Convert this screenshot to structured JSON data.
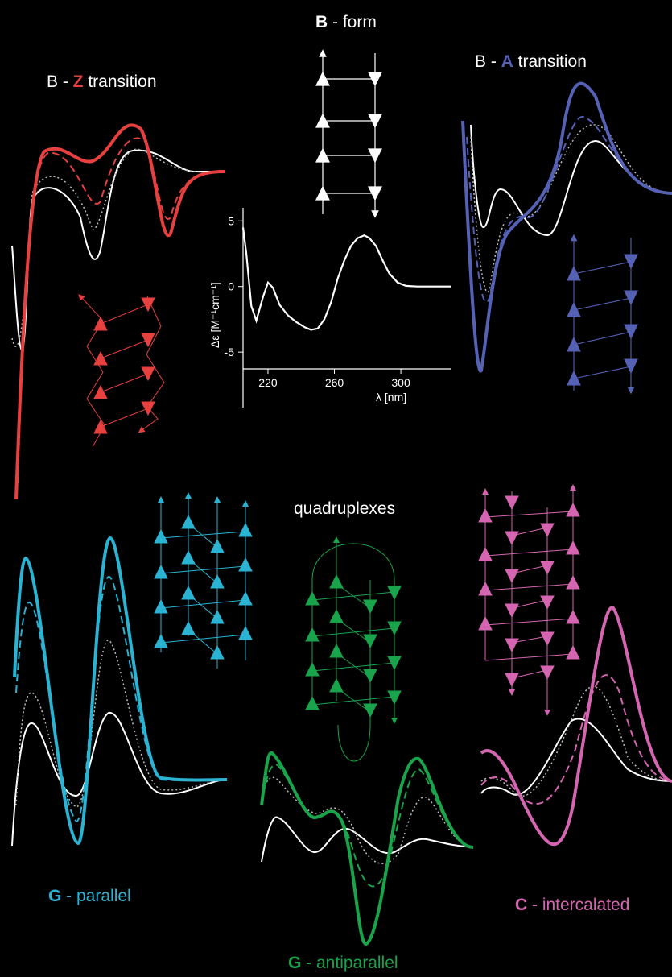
{
  "labels": {
    "b_form": {
      "prefix": "B",
      "suffix": " - form"
    },
    "bz": {
      "prefix": "B - ",
      "key": "Z",
      "suffix": " transition"
    },
    "ba": {
      "prefix": "B - ",
      "key": "A",
      "suffix": " transition"
    },
    "quadruplexes": "quadruplexes",
    "g_parallel": {
      "key": "G",
      "suffix": " - parallel"
    },
    "g_antiparallel": {
      "key": "G",
      "suffix": " - antiparallel"
    },
    "c_intercalated": {
      "key": "C",
      "suffix": " - intercalated"
    }
  },
  "colors": {
    "z": "#e8403f",
    "a": "#5561b4",
    "parallel": "#2ab3d3",
    "antiparallel": "#19a44c",
    "intercalated": "#d565b0",
    "reference": "#ffffff"
  },
  "chart_data": {
    "type": "line",
    "xlabel": "λ [nm]",
    "ylabel": "Δε [M⁻¹cm⁻¹]",
    "x_ticks": [
      "220",
      "260",
      "300"
    ],
    "y_ticks": [
      "5",
      "0",
      "-5"
    ],
    "xlim": [
      205,
      330
    ],
    "ylim": [
      -8,
      6
    ],
    "series": [
      {
        "x": [
          205,
          207,
          210,
          213,
          217,
          220,
          223,
          227,
          232,
          237,
          242,
          246,
          250,
          254,
          258,
          262,
          266,
          270,
          274,
          278,
          281,
          285,
          289,
          293,
          298,
          303,
          310,
          320,
          330
        ],
        "values": [
          4.5,
          2.5,
          -1.5,
          -2.6,
          -0.8,
          0.3,
          -0.1,
          -1.4,
          -2.2,
          -2.7,
          -3.1,
          -3.3,
          -3.2,
          -2.5,
          -1.2,
          0.6,
          2.0,
          3.1,
          3.7,
          3.9,
          3.7,
          3.1,
          2.0,
          1.0,
          0.3,
          0.05,
          0,
          0,
          0
        ]
      }
    ]
  }
}
